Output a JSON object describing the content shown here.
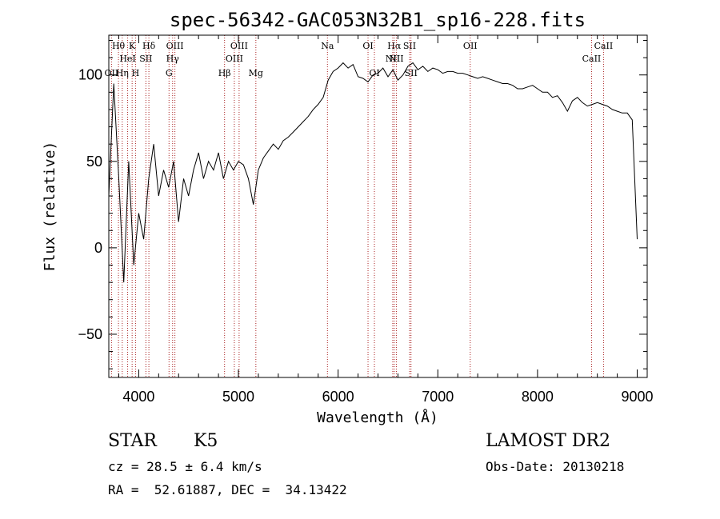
{
  "chart_data": {
    "type": "line",
    "title": "spec-56342-GAC053N32B1_sp16-228.fits",
    "xlabel": "Wavelength (Å)",
    "ylabel": "Flux (relative)",
    "xlim": [
      3700,
      9100
    ],
    "ylim": [
      -75,
      123
    ],
    "xticks": [
      4000,
      5000,
      6000,
      7000,
      8000,
      9000
    ],
    "yticks": [
      -50,
      0,
      50,
      100
    ],
    "grid": false,
    "series": [
      {
        "x": [
          3700,
          3750,
          3800,
          3850,
          3900,
          3950,
          4000,
          4050,
          4100,
          4150,
          4200,
          4250,
          4300,
          4350,
          4400,
          4450,
          4500,
          4550,
          4600,
          4650,
          4700,
          4750,
          4800,
          4850,
          4900,
          4950,
          5000,
          5050,
          5100,
          5150,
          5200,
          5250,
          5300,
          5350,
          5400,
          5450,
          5500,
          5550,
          5600,
          5650,
          5700,
          5750,
          5800,
          5850,
          5900,
          5950,
          6000,
          6050,
          6100,
          6150,
          6200,
          6250,
          6300,
          6350,
          6400,
          6450,
          6500,
          6550,
          6600,
          6650,
          6700,
          6750,
          6800,
          6850,
          6900,
          6950,
          7000,
          7050,
          7100,
          7150,
          7200,
          7250,
          7300,
          7350,
          7400,
          7450,
          7500,
          7550,
          7600,
          7650,
          7700,
          7750,
          7800,
          7850,
          7900,
          7950,
          8000,
          8050,
          8100,
          8150,
          8200,
          8250,
          8300,
          8350,
          8400,
          8450,
          8500,
          8550,
          8600,
          8650,
          8700,
          8750,
          8800,
          8850,
          8900,
          8950,
          9000
        ],
        "y": [
          30,
          95,
          40,
          -20,
          50,
          -10,
          20,
          5,
          40,
          60,
          30,
          45,
          35,
          50,
          15,
          40,
          30,
          45,
          55,
          40,
          50,
          45,
          55,
          40,
          50,
          45,
          50,
          48,
          40,
          25,
          45,
          52,
          56,
          60,
          57,
          62,
          64,
          67,
          70,
          73,
          76,
          80,
          83,
          87,
          97,
          102,
          104,
          107,
          104,
          106,
          99,
          98,
          96,
          100,
          101,
          104,
          99,
          103,
          97,
          100,
          105,
          107,
          103,
          105,
          102,
          104,
          103,
          101,
          102,
          102,
          101,
          101,
          100,
          99,
          98,
          99,
          98,
          97,
          96,
          95,
          95,
          94,
          92,
          92,
          93,
          94,
          92,
          90,
          90,
          87,
          88,
          84,
          79,
          85,
          87,
          84,
          82,
          83,
          84,
          83,
          82,
          80,
          79,
          78,
          78,
          74,
          5
        ]
      }
    ],
    "lines_upper": [
      {
        "label": "Hθ",
        "x": 3797
      },
      {
        "label": "K",
        "x": 3934
      },
      {
        "label": "Hδ",
        "x": 4102
      },
      {
        "label": "OIII",
        "x": 4363
      },
      {
        "label": "OIII",
        "x": 5007
      },
      {
        "label": "Na",
        "x": 5893
      },
      {
        "label": "OI",
        "x": 6300
      },
      {
        "label": "Hα",
        "x": 6563
      },
      {
        "label": "SII",
        "x": 6717
      },
      {
        "label": "OII",
        "x": 7325
      },
      {
        "label": "CaII",
        "x": 8662
      }
    ],
    "lines_mid": [
      {
        "label": "HeI",
        "x": 3889
      },
      {
        "label": "SII",
        "x": 4072
      },
      {
        "label": "Hγ",
        "x": 4340
      },
      {
        "label": "OIII",
        "x": 4959
      },
      {
        "label": "NII",
        "x": 6548
      },
      {
        "label": "NII",
        "x": 6584
      },
      {
        "label": "CaII",
        "x": 8542
      }
    ],
    "lines_low": [
      {
        "label": "OII",
        "x": 3727
      },
      {
        "label": "Hη",
        "x": 3835
      },
      {
        "label": "H",
        "x": 3968
      },
      {
        "label": "G",
        "x": 4304
      },
      {
        "label": "Hβ",
        "x": 4861
      },
      {
        "label": "Mg",
        "x": 5175
      },
      {
        "label": "OI",
        "x": 6364
      },
      {
        "label": "SII",
        "x": 6731
      }
    ],
    "line_color": "#aa2222",
    "spectrum_color": "#000000"
  },
  "info": {
    "object_class": "STAR",
    "subclass": "K5",
    "survey": "LAMOST DR2",
    "cz": "cz = 28.5 ± 6.4 km/s",
    "obs_date": "Obs-Date: 20130218",
    "coords": "RA =  52.61887, DEC =  34.13422"
  }
}
